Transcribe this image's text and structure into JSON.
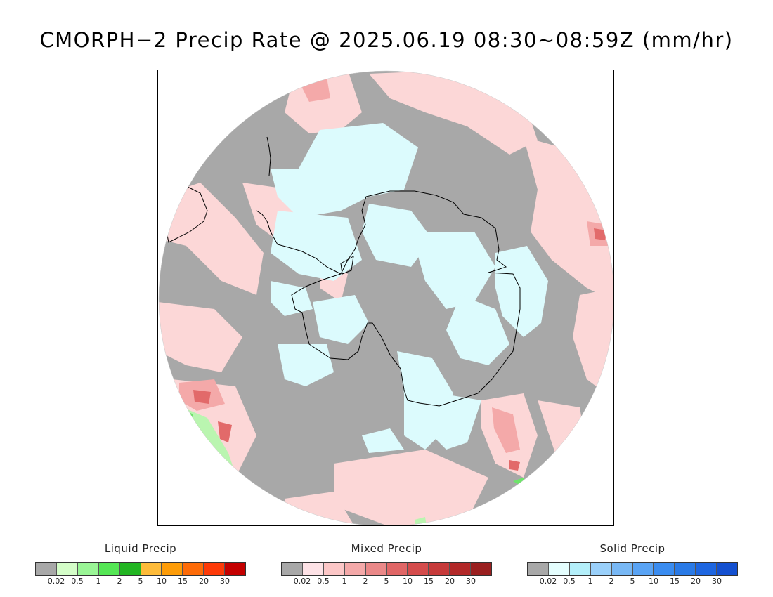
{
  "title": "CMORPH−2 Precip Rate @ 2025.06.19 08:30~08:59Z (mm/hr)",
  "map": {
    "projection": "south-polar-stereographic",
    "colors": {
      "no_precip": "#a8a8a8",
      "mixed_light": "#fcd7d7",
      "mixed_moderate": "#f4a9a9",
      "mixed_heavy": "#e26a6a",
      "solid_light": "#dcfbfd",
      "liquid_light": "#baf5b0",
      "liquid_moderate": "#6ee46a",
      "coastline": "#000000"
    }
  },
  "legends": [
    {
      "title": "Liquid Precip",
      "colors": [
        "#a8a8a8",
        "#d4fdc8",
        "#9af596",
        "#55e655",
        "#22b522",
        "#fdbb3a",
        "#fd9c08",
        "#fd6b08",
        "#fd3a08",
        "#c40000"
      ],
      "ticks": [
        "0.02",
        "0.5",
        "1",
        "2",
        "5",
        "10",
        "15",
        "20",
        "30"
      ]
    },
    {
      "title": "Mixed Precip",
      "colors": [
        "#a8a8a8",
        "#fde2e6",
        "#fcc7c7",
        "#f4a9a9",
        "#ea8888",
        "#e06666",
        "#d44c4c",
        "#c63a3a",
        "#b22828",
        "#9a2020"
      ],
      "ticks": [
        "0.02",
        "0.5",
        "1",
        "2",
        "5",
        "10",
        "15",
        "20",
        "30"
      ]
    },
    {
      "title": "Solid Precip",
      "colors": [
        "#a8a8a8",
        "#e4fdfd",
        "#b4effa",
        "#9ad0fa",
        "#78b8f5",
        "#5aa4f5",
        "#3a8cf0",
        "#2a7ae6",
        "#1e66e0",
        "#1450d0"
      ],
      "ticks": [
        "0.02",
        "0.5",
        "1",
        "2",
        "5",
        "10",
        "15",
        "20",
        "30"
      ]
    }
  ]
}
